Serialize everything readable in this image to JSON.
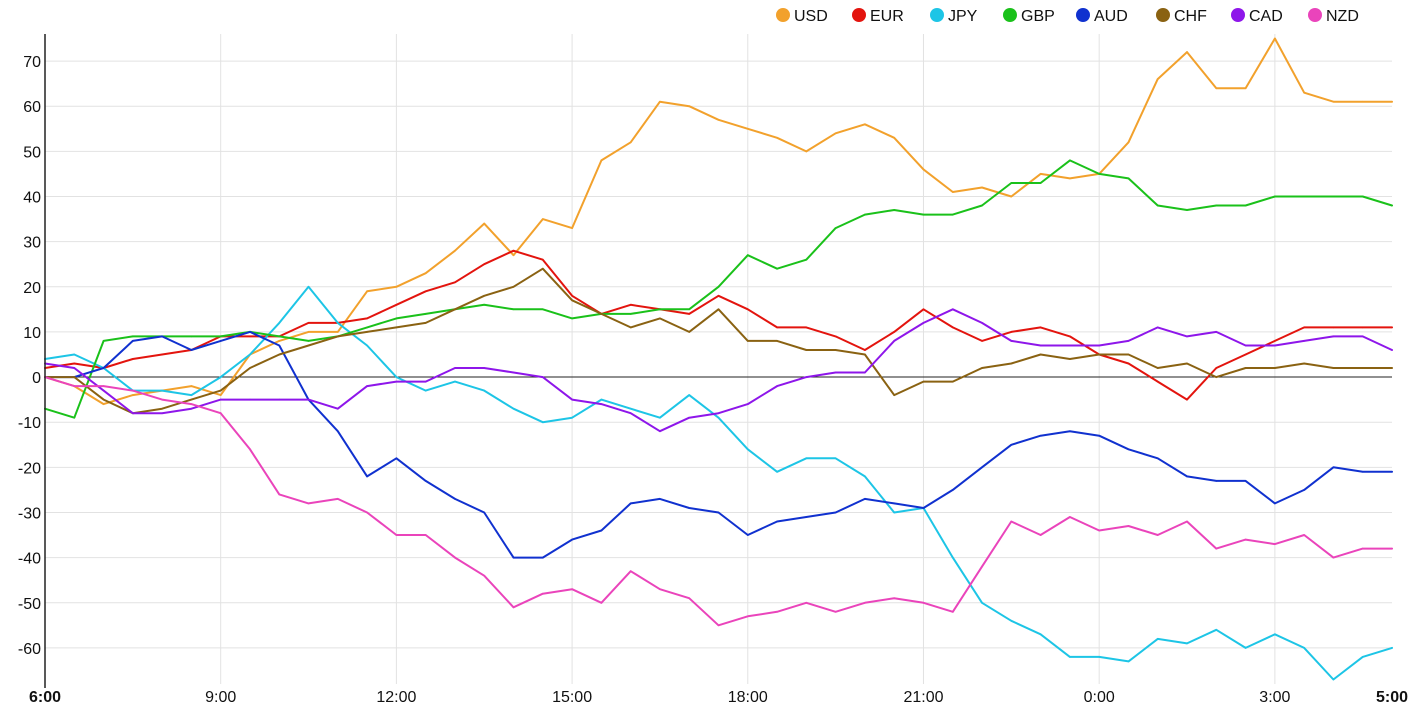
{
  "chart_data": {
    "type": "line",
    "title": "",
    "xlabel": "",
    "ylabel": "",
    "ylim": [
      -68,
      76
    ],
    "yticks": [
      -60,
      -50,
      -40,
      -30,
      -20,
      -10,
      0,
      10,
      20,
      30,
      40,
      50,
      60,
      70
    ],
    "xtick_labels": [
      "6:00",
      "9:00",
      "12:00",
      "15:00",
      "18:00",
      "21:00",
      "0:00",
      "3:00",
      "5:00"
    ],
    "xtick_hours": [
      0,
      3,
      6,
      9,
      12,
      15,
      18,
      21,
      23
    ],
    "xtick_bold": [
      true,
      false,
      false,
      false,
      false,
      false,
      false,
      false,
      true
    ],
    "xlim_hours": [
      0,
      23
    ],
    "grid": true,
    "zero_line": true,
    "legend_position": "top-right",
    "x_hours": [
      0,
      0.5,
      1,
      1.5,
      2,
      2.5,
      3,
      3.5,
      4,
      4.5,
      5,
      5.5,
      6,
      6.5,
      7,
      7.5,
      8,
      8.5,
      9,
      9.5,
      10,
      10.5,
      11,
      11.5,
      12,
      12.5,
      13,
      13.5,
      14,
      14.5,
      15,
      15.5,
      16,
      16.5,
      17,
      17.5,
      18,
      18.5,
      19,
      19.5,
      20,
      20.5,
      21,
      21.5,
      22,
      22.5,
      23
    ],
    "series": [
      {
        "name": "USD",
        "color": "#f2a12c",
        "values": [
          0,
          -2,
          -6,
          -4,
          -3,
          -2,
          -4,
          5,
          8,
          10,
          10,
          19,
          20,
          23,
          28,
          34,
          27,
          35,
          33,
          48,
          52,
          61,
          60,
          57,
          55,
          53,
          50,
          54,
          56,
          53,
          46,
          41,
          42,
          40,
          45,
          44,
          45,
          52,
          66,
          72,
          64,
          64,
          75,
          63,
          61,
          61,
          61
        ]
      },
      {
        "name": "EUR",
        "color": "#e3140e",
        "values": [
          2,
          3,
          2,
          4,
          5,
          6,
          9,
          9,
          9,
          12,
          12,
          13,
          16,
          19,
          21,
          25,
          28,
          26,
          18,
          14,
          16,
          15,
          14,
          18,
          15,
          11,
          11,
          9,
          6,
          10,
          15,
          11,
          8,
          10,
          11,
          9,
          5,
          3,
          -1,
          -5,
          2,
          5,
          8,
          11,
          11,
          11,
          11
        ]
      },
      {
        "name": "JPY",
        "color": "#1dc5e6",
        "values": [
          4,
          5,
          2,
          -3,
          -3,
          -4,
          0,
          5,
          12,
          20,
          12,
          7,
          0,
          -3,
          -1,
          -3,
          -7,
          -10,
          -9,
          -5,
          -7,
          -9,
          -4,
          -9,
          -16,
          -21,
          -18,
          -18,
          -22,
          -30,
          -29,
          -40,
          -50,
          -54,
          -57,
          -62,
          -62,
          -63,
          -58,
          -59,
          -56,
          -60,
          -57,
          -60,
          -67,
          -62,
          -60
        ]
      },
      {
        "name": "GBP",
        "color": "#1ac11a",
        "values": [
          -7,
          -9,
          8,
          9,
          9,
          9,
          9,
          10,
          9,
          8,
          9,
          11,
          13,
          14,
          15,
          16,
          15,
          15,
          13,
          14,
          14,
          15,
          15,
          20,
          27,
          24,
          26,
          33,
          36,
          37,
          36,
          36,
          38,
          43,
          43,
          48,
          45,
          44,
          38,
          37,
          38,
          38,
          40,
          40,
          40,
          40,
          38
        ]
      },
      {
        "name": "AUD",
        "color": "#1031cf",
        "values": [
          0,
          0,
          2,
          8,
          9,
          6,
          8,
          10,
          7,
          -5,
          -12,
          -22,
          -18,
          -23,
          -27,
          -30,
          -40,
          -40,
          -36,
          -34,
          -28,
          -27,
          -29,
          -30,
          -35,
          -32,
          -31,
          -30,
          -27,
          -28,
          -29,
          -25,
          -20,
          -15,
          -13,
          -12,
          -13,
          -16,
          -18,
          -22,
          -23,
          -23,
          -28,
          -25,
          -20,
          -21,
          -21
        ]
      },
      {
        "name": "CHF",
        "color": "#8a6212",
        "values": [
          0,
          0,
          -5,
          -8,
          -7,
          -5,
          -3,
          2,
          5,
          7,
          9,
          10,
          11,
          12,
          15,
          18,
          20,
          24,
          17,
          14,
          11,
          13,
          10,
          15,
          8,
          8,
          6,
          6,
          5,
          -4,
          -1,
          -1,
          2,
          3,
          5,
          4,
          5,
          5,
          2,
          3,
          0,
          2,
          2,
          3,
          2,
          2,
          2
        ]
      },
      {
        "name": "CAD",
        "color": "#8e16ea",
        "values": [
          3,
          2,
          -3,
          -8,
          -8,
          -7,
          -5,
          -5,
          -5,
          -5,
          -7,
          -2,
          -1,
          -1,
          2,
          2,
          1,
          0,
          -5,
          -6,
          -8,
          -12,
          -9,
          -8,
          -6,
          -2,
          0,
          1,
          1,
          8,
          12,
          15,
          12,
          8,
          7,
          7,
          7,
          8,
          11,
          9,
          10,
          7,
          7,
          8,
          9,
          9,
          6
        ]
      },
      {
        "name": "NZD",
        "color": "#ea44bb",
        "values": [
          0,
          -2,
          -2,
          -3,
          -5,
          -6,
          -8,
          -16,
          -26,
          -28,
          -27,
          -30,
          -35,
          -35,
          -40,
          -44,
          -51,
          -48,
          -47,
          -50,
          -43,
          -47,
          -49,
          -55,
          -53,
          -52,
          -50,
          -52,
          -50,
          -49,
          -50,
          -52,
          -42,
          -32,
          -35,
          -31,
          -34,
          -33,
          -35,
          -32,
          -38,
          -36,
          -37,
          -35,
          -40,
          -38,
          -38
        ]
      }
    ]
  }
}
